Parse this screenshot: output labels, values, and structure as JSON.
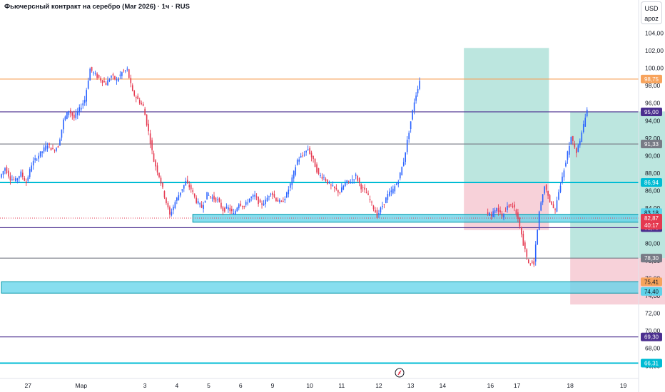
{
  "header": {
    "title": "Фьючерсный контракт на серебро (Mar 2026) · 1ч · RUS",
    "currency": "USD",
    "unit": "apoz"
  },
  "colors": {
    "up": "#2962ff",
    "down": "#e53950",
    "orange": "#f7a35c",
    "purple": "#4b2f8f",
    "gray": "#787b86",
    "cyan": "#00bcd4",
    "zone": "#5fd3ea",
    "target": "#8fd5c9",
    "stop": "#f3b9c4"
  },
  "chart_data": {
    "type": "candlestick",
    "y_axis": {
      "range": [
        64.8,
        106.8
      ],
      "ticks": [
        "104,00",
        "102,00",
        "100,00",
        "98,00",
        "96,00",
        "94,00",
        "92,00",
        "90,00",
        "88,00",
        "86,00",
        "84,00",
        "82,00",
        "80,00",
        "78,00",
        "76,00",
        "74,00",
        "72,00",
        "70,00",
        "68,00",
        "66,00"
      ]
    },
    "x_axis": {
      "labels": [
        {
          "label": "27",
          "i": 5
        },
        {
          "label": "Мар",
          "i": 15
        },
        {
          "label": "3",
          "i": 27
        },
        {
          "label": "4",
          "i": 33
        },
        {
          "label": "5",
          "i": 39
        },
        {
          "label": "6",
          "i": 45
        },
        {
          "label": "9",
          "i": 51
        },
        {
          "label": "10",
          "i": 58
        },
        {
          "label": "11",
          "i": 64
        },
        {
          "label": "12",
          "i": 71
        },
        {
          "label": "13",
          "i": 77
        },
        {
          "label": "14",
          "i": 83
        },
        {
          "label": "16",
          "i": 92
        },
        {
          "label": "17",
          "i": 97
        },
        {
          "label": "18",
          "i": 107
        },
        {
          "label": "19",
          "i": 117
        }
      ]
    },
    "close_path": [
      87.5,
      88.6,
      87.4,
      87.2,
      88.0,
      86.9,
      89.0,
      89.8,
      90.5,
      91.3,
      90.6,
      91.1,
      94.0,
      95.2,
      94.3,
      95.3,
      96.4,
      99.9,
      99.2,
      98.7,
      98.2,
      99.1,
      98.6,
      99.5,
      99.8,
      97.2,
      96.4,
      95.6,
      92.7,
      89.4,
      87.7,
      85.4,
      83.2,
      84.7,
      85.9,
      87.0,
      86.2,
      84.8,
      84.1,
      85.6,
      85.2,
      84.9,
      83.8,
      84.0,
      83.3,
      84.6,
      84.2,
      85.1,
      85.4,
      84.4,
      84.8,
      85.9,
      85.0,
      84.6,
      85.6,
      87.3,
      89.5,
      90.0,
      90.8,
      89.4,
      87.8,
      87.5,
      86.7,
      86.2,
      85.8,
      86.9,
      87.1,
      87.7,
      86.4,
      85.7,
      84.5,
      83.1,
      84.3,
      85.5,
      86.1,
      87.2,
      89.4,
      92.8,
      96.2,
      98.6
    ],
    "path2": [
      83.4,
      83.2,
      84.2,
      83.0,
      84.3,
      84.4,
      82.8,
      79.9,
      77.6,
      77.8,
      83.6,
      86.7,
      84.8,
      83.7,
      86.8,
      89.4,
      92.2,
      90.2,
      92.6,
      95.1
    ],
    "horizontal_lines": [
      {
        "price": 98.75,
        "label": "98,75",
        "color": "orange"
      },
      {
        "price": 95.0,
        "label": "95,00",
        "color": "purple"
      },
      {
        "price": 91.33,
        "label": "91,33",
        "color": "gray"
      },
      {
        "price": 86.94,
        "label": "86,94",
        "color": "cyan"
      },
      {
        "price": 81.78,
        "label": "81,78",
        "color": "purple"
      },
      {
        "price": 78.3,
        "label": "78,30",
        "color": "gray"
      },
      {
        "price": 69.3,
        "label": "69,30",
        "color": "purple"
      },
      {
        "price": 66.31,
        "label": "66,31",
        "color": "cyan"
      }
    ],
    "zones": [
      {
        "top": 83.3,
        "bottom": 82.4,
        "left_index": 36,
        "label": "83,18"
      },
      {
        "top": 75.6,
        "bottom": 74.3,
        "left_index": 0,
        "label": "75,41"
      }
    ],
    "zone_labels_extra": [
      "74,40"
    ],
    "current_price": {
      "price": 82.87,
      "label": "82,87",
      "countdown": "40:17"
    },
    "other_price_label": {
      "price": 82.44,
      "label": "82,44"
    },
    "positions": [
      {
        "entry": 86.94,
        "target": 102.3,
        "stop": 81.5,
        "left_index": 87,
        "right_index": 103
      },
      {
        "entry": 78.3,
        "target": 95.05,
        "stop": 73.0,
        "left_index": 107,
        "right_index": 131
      }
    ]
  }
}
